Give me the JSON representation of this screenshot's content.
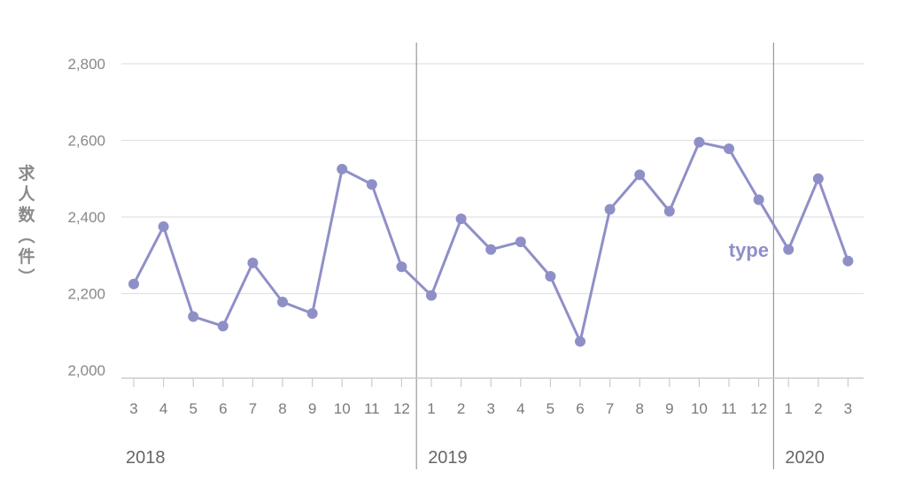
{
  "chart_data": {
    "type": "line",
    "ylabel": "求人数（件）",
    "ylim": [
      2000,
      2800
    ],
    "yticks": [
      2000,
      2200,
      2400,
      2600,
      2800
    ],
    "ytick_labels": [
      "2,000",
      "2,200",
      "2,400",
      "2,600",
      "2,800"
    ],
    "grid": "horizontal",
    "colors": {
      "series": "#8f8fc8",
      "grid": "#dfe2e8",
      "divider": "#999999",
      "axis": "#c9ccd3"
    },
    "categories": [
      "3",
      "4",
      "5",
      "6",
      "7",
      "8",
      "9",
      "10",
      "11",
      "12",
      "1",
      "2",
      "3",
      "4",
      "5",
      "6",
      "7",
      "8",
      "9",
      "10",
      "11",
      "12",
      "1",
      "2",
      "3"
    ],
    "years": [
      {
        "label": "2018",
        "start_index": 0
      },
      {
        "label": "2019",
        "start_index": 10
      },
      {
        "label": "2020",
        "start_index": 22
      }
    ],
    "series": [
      {
        "name": "type",
        "values": [
          2225,
          2375,
          2140,
          2115,
          2280,
          2178,
          2148,
          2525,
          2485,
          2270,
          2195,
          2395,
          2315,
          2335,
          2245,
          2075,
          2420,
          2510,
          2415,
          2595,
          2578,
          2445,
          2315,
          2500,
          2285
        ]
      }
    ]
  }
}
